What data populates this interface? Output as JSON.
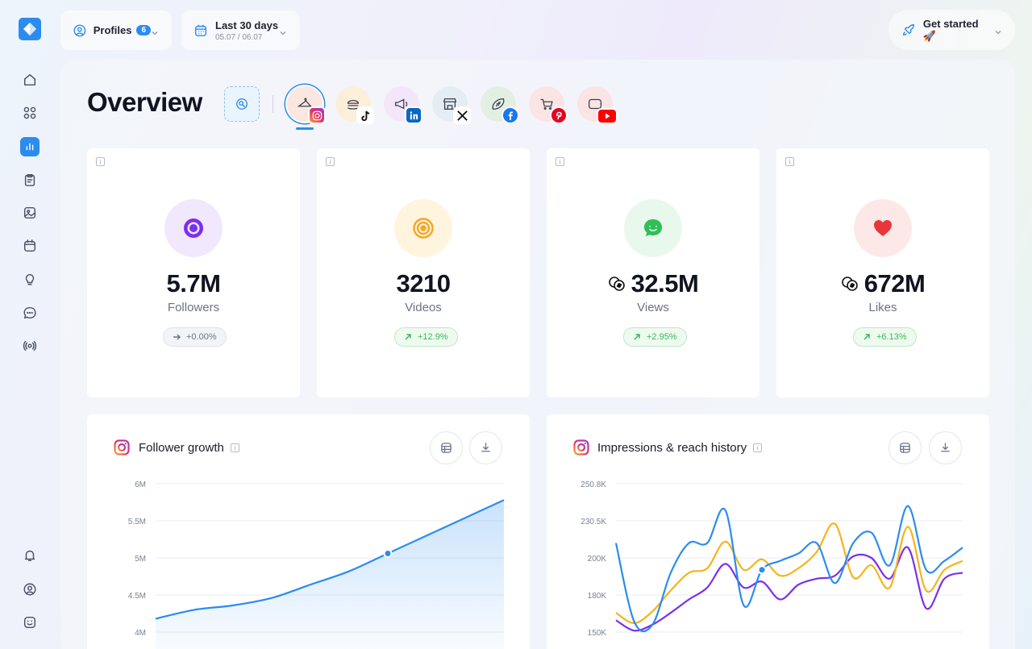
{
  "topbar": {
    "profiles_label": "Profiles",
    "profiles_count": "6",
    "date_label": "Last 30 days",
    "date_range": "05.07 / 06.07",
    "get_started": "Get started 🚀"
  },
  "sidebar": {
    "items": [
      {
        "name": "home",
        "icon": "home-icon"
      },
      {
        "name": "apps",
        "icon": "grid-icon"
      },
      {
        "name": "analytics",
        "icon": "bar-chart-icon",
        "active": true
      },
      {
        "name": "reports",
        "icon": "clipboard-icon"
      },
      {
        "name": "media",
        "icon": "image-icon"
      },
      {
        "name": "calendar",
        "icon": "calendar-icon"
      },
      {
        "name": "ideas",
        "icon": "lightbulb-icon"
      },
      {
        "name": "messages",
        "icon": "chat-icon"
      },
      {
        "name": "broadcast",
        "icon": "broadcast-icon"
      }
    ],
    "bottom": [
      {
        "name": "notifications",
        "icon": "bell-icon"
      },
      {
        "name": "account",
        "icon": "user-icon"
      },
      {
        "name": "support",
        "icon": "smiley-icon"
      }
    ]
  },
  "page": {
    "title": "Overview"
  },
  "accounts": [
    {
      "network": "instagram",
      "avatar_bg": "#fbe6e0",
      "active": true
    },
    {
      "network": "tiktok",
      "avatar_bg": "#fbefd9"
    },
    {
      "network": "linkedin",
      "avatar_bg": "#f3e6fb"
    },
    {
      "network": "x",
      "avatar_bg": "#e4edf4"
    },
    {
      "network": "facebook",
      "avatar_bg": "#e4efe3"
    },
    {
      "network": "pinterest",
      "avatar_bg": "#fbe4e4"
    },
    {
      "network": "youtube",
      "avatar_bg": "#fbe4e4"
    }
  ],
  "stats": [
    {
      "value": "5.7M",
      "label": "Followers",
      "change": "+0.00%",
      "trend": "neutral",
      "icon": "eye-icon",
      "icon_color": "#7b2ff0",
      "bg": "#f1e8fd",
      "coin": false
    },
    {
      "value": "3210",
      "label": "Videos",
      "change": "+12.9%",
      "trend": "up",
      "icon": "target-icon",
      "icon_color": "#f5a623",
      "bg": "#fff4de",
      "coin": false
    },
    {
      "value": "32.5M",
      "label": "Views",
      "change": "+2.95%",
      "trend": "up",
      "icon": "chat-bubble-icon",
      "icon_color": "#2fbf56",
      "bg": "#e9f8ec",
      "coin": true
    },
    {
      "value": "672M",
      "label": "Likes",
      "change": "+6.13%",
      "trend": "up",
      "icon": "heart-icon",
      "icon_color": "#e8363a",
      "bg": "#fde8e8",
      "coin": true
    }
  ],
  "charts": {
    "follower_title": "Follower growth",
    "impressions_title": "Impressions & reach history"
  },
  "chart_data": [
    {
      "type": "area",
      "title": "Follower growth",
      "yticks": [
        "6M",
        "5.5M",
        "5M",
        "4.5M",
        "4M"
      ],
      "ylim": [
        4000000,
        6000000
      ],
      "series": [
        {
          "values": [
            4180000,
            4300000,
            4360000,
            4460000,
            4640000,
            4820000,
            5060000,
            5300000,
            5540000,
            5780000
          ]
        }
      ],
      "highlight_index": 6,
      "color": "#2b8cf0"
    },
    {
      "type": "line",
      "title": "Impressions & reach history",
      "yticks": [
        "250.8K",
        "230.5K",
        "200K",
        "180K",
        "150K"
      ],
      "series": [
        {
          "color": "#2b8cf0",
          "values": [
            0.4,
            0.93,
            0.95,
            0.6,
            0.4,
            0.4,
            0.18,
            0.82,
            0.58,
            0.52,
            0.47,
            0.4,
            0.67,
            0.4,
            0.33,
            0.55,
            0.15,
            0.58,
            0.52,
            0.43
          ]
        },
        {
          "color": "#f5b41a",
          "values": [
            0.87,
            0.94,
            0.86,
            0.72,
            0.6,
            0.57,
            0.39,
            0.58,
            0.51,
            0.62,
            0.57,
            0.46,
            0.27,
            0.63,
            0.55,
            0.7,
            0.29,
            0.72,
            0.58,
            0.52
          ]
        },
        {
          "color": "#7b2ff0",
          "values": [
            0.92,
            0.99,
            0.95,
            0.87,
            0.78,
            0.7,
            0.54,
            0.7,
            0.66,
            0.78,
            0.68,
            0.64,
            0.62,
            0.49,
            0.5,
            0.64,
            0.43,
            0.84,
            0.64,
            0.6
          ]
        }
      ],
      "highlight_series": 0,
      "highlight_index": 8
    }
  ]
}
